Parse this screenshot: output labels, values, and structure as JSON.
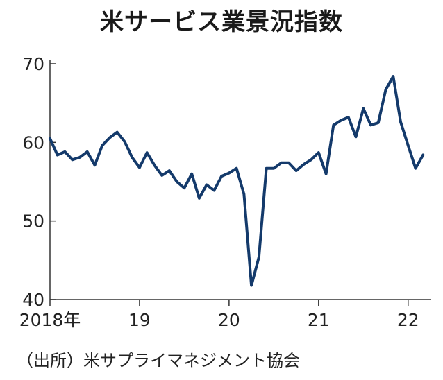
{
  "title": "米サービス業景況指数",
  "source": "（出所）米サプライマネジメント協会",
  "colors": {
    "line": "#143a6b",
    "axis": "#333333",
    "text": "#222222"
  },
  "chart_data": {
    "type": "line",
    "title": "米サービス業景況指数",
    "xlabel": "",
    "ylabel": "",
    "ylim": [
      40,
      70
    ],
    "yticks": [
      40,
      50,
      60,
      70
    ],
    "xlim": [
      2018.0,
      2022.25
    ],
    "xticks": [
      {
        "value": 2018,
        "label": "2018年"
      },
      {
        "value": 2019,
        "label": "19"
      },
      {
        "value": 2020,
        "label": "20"
      },
      {
        "value": 2021,
        "label": "21"
      },
      {
        "value": 2022,
        "label": "22"
      }
    ],
    "grid": false,
    "legend": "none",
    "series": [
      {
        "x": [
          "2018-01",
          "2018-02",
          "2018-03",
          "2018-04",
          "2018-05",
          "2018-06",
          "2018-07",
          "2018-08",
          "2018-09",
          "2018-10",
          "2018-11",
          "2018-12",
          "2019-01",
          "2019-02",
          "2019-03",
          "2019-04",
          "2019-05",
          "2019-06",
          "2019-07",
          "2019-08",
          "2019-09",
          "2019-10",
          "2019-11",
          "2019-12",
          "2020-01",
          "2020-02",
          "2020-03",
          "2020-04",
          "2020-05",
          "2020-06",
          "2020-07",
          "2020-08",
          "2020-09",
          "2020-10",
          "2020-11",
          "2020-12",
          "2021-01",
          "2021-02",
          "2021-03",
          "2021-04",
          "2021-05",
          "2021-06",
          "2021-07",
          "2021-08",
          "2021-09",
          "2021-10",
          "2021-11",
          "2021-12",
          "2022-01",
          "2022-02",
          "2022-03"
        ],
        "values": [
          60.5,
          58.4,
          58.8,
          57.8,
          58.1,
          58.8,
          57.1,
          59.6,
          60.6,
          61.3,
          60.1,
          58.1,
          56.8,
          58.7,
          57.1,
          55.8,
          56.4,
          55.0,
          54.2,
          56.0,
          52.9,
          54.6,
          53.9,
          55.7,
          56.1,
          56.7,
          53.4,
          41.8,
          45.4,
          56.7,
          56.7,
          57.4,
          57.4,
          56.4,
          57.2,
          57.8,
          58.7,
          56.0,
          62.2,
          62.8,
          63.2,
          60.7,
          64.3,
          62.2,
          62.5,
          66.7,
          68.4,
          62.6,
          59.6,
          56.7,
          58.4
        ]
      }
    ]
  }
}
